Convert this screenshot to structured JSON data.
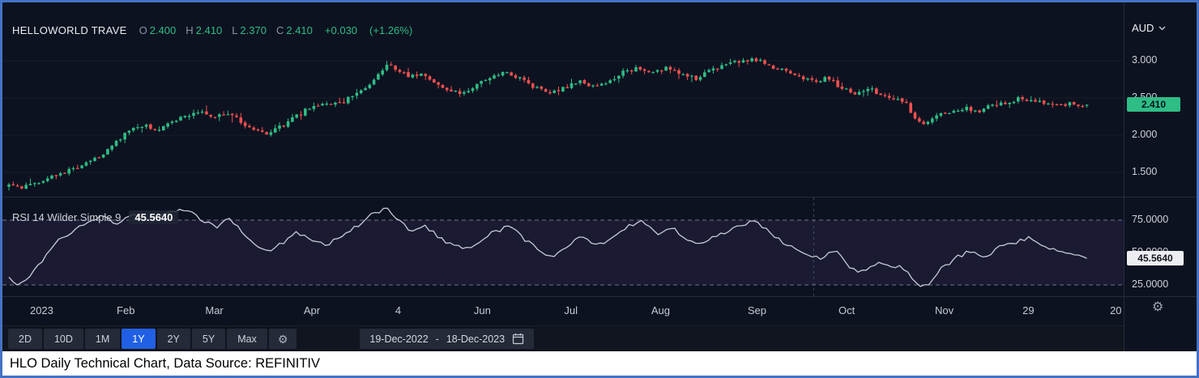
{
  "header": {
    "symbol": "HELLOWORLD TRAVE",
    "ohlc": [
      {
        "label": "O",
        "value": "2.400"
      },
      {
        "label": "H",
        "value": "2.410"
      },
      {
        "label": "L",
        "value": "2.370"
      },
      {
        "label": "C",
        "value": "2.410"
      }
    ],
    "change": "+0.030",
    "change_pct": "(+1.26%)"
  },
  "axis_right": {
    "currency": "AUD",
    "price_ticks": [
      "3.000",
      "2.500",
      "2.000",
      "1.500"
    ],
    "last_price": "2.410",
    "rsi_ticks": [
      "75.0000",
      "50.0000",
      "25.0000"
    ],
    "rsi_value": "45.5640"
  },
  "rsi_panel": {
    "label": "RSI 14 Wilder Simple 9",
    "value": "45.5640"
  },
  "x_axis": {
    "labels": [
      {
        "text": "2023",
        "pos": 0.035
      },
      {
        "text": "Feb",
        "pos": 0.11
      },
      {
        "text": "Mar",
        "pos": 0.189
      },
      {
        "text": "Apr",
        "pos": 0.276
      },
      {
        "text": "4",
        "pos": 0.353
      },
      {
        "text": "Jun",
        "pos": 0.428
      },
      {
        "text": "Jul",
        "pos": 0.507
      },
      {
        "text": "Aug",
        "pos": 0.587
      },
      {
        "text": "Sep",
        "pos": 0.673
      },
      {
        "text": "Oct",
        "pos": 0.753
      },
      {
        "text": "Nov",
        "pos": 0.84
      },
      {
        "text": "29",
        "pos": 0.915
      },
      {
        "text": "20",
        "pos": 0.993
      }
    ]
  },
  "toolbar": {
    "ranges": [
      {
        "label": "2D",
        "active": false
      },
      {
        "label": "10D",
        "active": false
      },
      {
        "label": "1M",
        "active": false
      },
      {
        "label": "1Y",
        "active": true
      },
      {
        "label": "2Y",
        "active": false
      },
      {
        "label": "5Y",
        "active": false
      },
      {
        "label": "Max",
        "active": false
      }
    ],
    "date_range": {
      "from": "19-Dec-2022",
      "sep": "-",
      "to": "18-Dec-2023"
    }
  },
  "caption": "HLO Daily Technical Chart, Data Source: REFINITIV",
  "colors": {
    "up": "#2ebd85",
    "down": "#f0504f",
    "accent_blue": "#2160e4",
    "last_price_badge": "#2ebd85",
    "frame_border": "#4472c4",
    "background": "#0d1220"
  },
  "chart_data": [
    {
      "type": "candlestick",
      "title": "HELLOWORLD TRAVE daily OHLC (AUD)",
      "x_range": [
        "19-Dec-2022",
        "18-Dec-2023"
      ],
      "y_ticks": [
        3.0,
        2.5,
        2.0,
        1.5
      ],
      "ylim": [
        1.2,
        3.3
      ],
      "n_candles": 252,
      "x_extent": 0.967,
      "last": {
        "o": 2.4,
        "h": 2.41,
        "l": 2.37,
        "c": 2.41,
        "change": 0.03,
        "change_pct": 1.26
      },
      "close_trend_anchors": [
        [
          0.0,
          1.31
        ],
        [
          0.01,
          1.29
        ],
        [
          0.025,
          1.36
        ],
        [
          0.04,
          1.45
        ],
        [
          0.055,
          1.53
        ],
        [
          0.07,
          1.62
        ],
        [
          0.085,
          1.74
        ],
        [
          0.097,
          1.92
        ],
        [
          0.108,
          2.05
        ],
        [
          0.12,
          2.13
        ],
        [
          0.133,
          2.08
        ],
        [
          0.147,
          2.17
        ],
        [
          0.16,
          2.27
        ],
        [
          0.172,
          2.32
        ],
        [
          0.183,
          2.24
        ],
        [
          0.196,
          2.3
        ],
        [
          0.208,
          2.18
        ],
        [
          0.22,
          2.07
        ],
        [
          0.232,
          2.02
        ],
        [
          0.245,
          2.12
        ],
        [
          0.257,
          2.24
        ],
        [
          0.27,
          2.37
        ],
        [
          0.283,
          2.45
        ],
        [
          0.295,
          2.41
        ],
        [
          0.308,
          2.52
        ],
        [
          0.322,
          2.66
        ],
        [
          0.333,
          2.85
        ],
        [
          0.34,
          2.96
        ],
        [
          0.35,
          2.85
        ],
        [
          0.36,
          2.77
        ],
        [
          0.37,
          2.84
        ],
        [
          0.382,
          2.71
        ],
        [
          0.394,
          2.61
        ],
        [
          0.406,
          2.56
        ],
        [
          0.419,
          2.67
        ],
        [
          0.432,
          2.78
        ],
        [
          0.445,
          2.85
        ],
        [
          0.458,
          2.76
        ],
        [
          0.471,
          2.65
        ],
        [
          0.483,
          2.57
        ],
        [
          0.496,
          2.63
        ],
        [
          0.51,
          2.72
        ],
        [
          0.524,
          2.67
        ],
        [
          0.538,
          2.73
        ],
        [
          0.552,
          2.85
        ],
        [
          0.565,
          2.91
        ],
        [
          0.578,
          2.84
        ],
        [
          0.591,
          2.92
        ],
        [
          0.603,
          2.83
        ],
        [
          0.616,
          2.75
        ],
        [
          0.629,
          2.87
        ],
        [
          0.642,
          2.94
        ],
        [
          0.655,
          2.99
        ],
        [
          0.668,
          3.03
        ],
        [
          0.681,
          2.94
        ],
        [
          0.695,
          2.86
        ],
        [
          0.708,
          2.79
        ],
        [
          0.722,
          2.73
        ],
        [
          0.735,
          2.77
        ],
        [
          0.748,
          2.62
        ],
        [
          0.76,
          2.56
        ],
        [
          0.772,
          2.62
        ],
        [
          0.784,
          2.54
        ],
        [
          0.796,
          2.5
        ],
        [
          0.805,
          2.45
        ],
        [
          0.812,
          2.22
        ],
        [
          0.82,
          2.16
        ],
        [
          0.832,
          2.26
        ],
        [
          0.845,
          2.32
        ],
        [
          0.858,
          2.37
        ],
        [
          0.87,
          2.31
        ],
        [
          0.882,
          2.4
        ],
        [
          0.895,
          2.45
        ],
        [
          0.908,
          2.49
        ],
        [
          0.921,
          2.46
        ],
        [
          0.935,
          2.43
        ],
        [
          0.95,
          2.42
        ],
        [
          0.967,
          2.41
        ]
      ]
    },
    {
      "type": "line",
      "title": "RSI 14 Wilder Simple 9",
      "y_ticks": [
        75,
        50,
        25
      ],
      "ylim": [
        15,
        90
      ],
      "bands": [
        25,
        75
      ],
      "last_value": 45.564,
      "vline_x": 0.722,
      "points": [
        [
          0.0,
          31
        ],
        [
          0.008,
          24
        ],
        [
          0.02,
          34
        ],
        [
          0.034,
          48
        ],
        [
          0.048,
          62
        ],
        [
          0.065,
          71
        ],
        [
          0.085,
          78
        ],
        [
          0.097,
          72
        ],
        [
          0.11,
          79
        ],
        [
          0.125,
          74
        ],
        [
          0.142,
          80
        ],
        [
          0.158,
          83
        ],
        [
          0.172,
          76
        ],
        [
          0.185,
          69
        ],
        [
          0.198,
          77
        ],
        [
          0.21,
          64
        ],
        [
          0.222,
          56
        ],
        [
          0.233,
          50
        ],
        [
          0.246,
          58
        ],
        [
          0.258,
          66
        ],
        [
          0.271,
          61
        ],
        [
          0.284,
          56
        ],
        [
          0.297,
          62
        ],
        [
          0.31,
          69
        ],
        [
          0.325,
          79
        ],
        [
          0.34,
          84
        ],
        [
          0.352,
          73
        ],
        [
          0.363,
          66
        ],
        [
          0.374,
          71
        ],
        [
          0.386,
          61
        ],
        [
          0.398,
          56
        ],
        [
          0.41,
          52
        ],
        [
          0.423,
          60
        ],
        [
          0.436,
          66
        ],
        [
          0.449,
          70
        ],
        [
          0.462,
          61
        ],
        [
          0.475,
          52
        ],
        [
          0.488,
          47
        ],
        [
          0.501,
          55
        ],
        [
          0.514,
          62
        ],
        [
          0.528,
          56
        ],
        [
          0.542,
          62
        ],
        [
          0.556,
          70
        ],
        [
          0.569,
          74
        ],
        [
          0.582,
          64
        ],
        [
          0.595,
          70
        ],
        [
          0.608,
          60
        ],
        [
          0.621,
          55
        ],
        [
          0.634,
          63
        ],
        [
          0.647,
          68
        ],
        [
          0.66,
          72
        ],
        [
          0.672,
          74
        ],
        [
          0.686,
          62
        ],
        [
          0.7,
          55
        ],
        [
          0.714,
          50
        ],
        [
          0.728,
          45
        ],
        [
          0.742,
          52
        ],
        [
          0.755,
          38
        ],
        [
          0.768,
          34
        ],
        [
          0.78,
          44
        ],
        [
          0.792,
          40
        ],
        [
          0.803,
          38
        ],
        [
          0.814,
          26
        ],
        [
          0.824,
          24
        ],
        [
          0.836,
          38
        ],
        [
          0.85,
          46
        ],
        [
          0.863,
          52
        ],
        [
          0.876,
          46
        ],
        [
          0.889,
          54
        ],
        [
          0.902,
          58
        ],
        [
          0.915,
          62
        ],
        [
          0.93,
          54
        ],
        [
          0.945,
          50
        ],
        [
          0.967,
          45.56
        ]
      ]
    }
  ]
}
